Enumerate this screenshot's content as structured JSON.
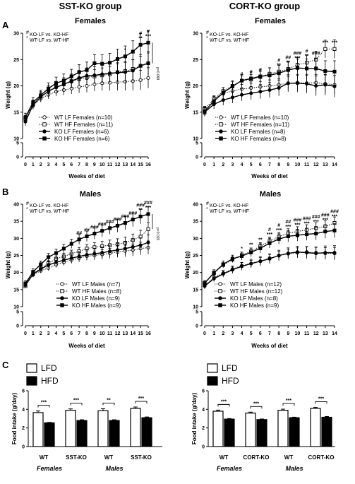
{
  "headers": {
    "left": "SST-KO group",
    "right": "CORT-KO group"
  },
  "panel_labels": [
    "A",
    "B",
    "C"
  ],
  "colors": {
    "ink": "#000000",
    "open": "#ffffff"
  },
  "chart_data": [
    {
      "id": "sst-females",
      "type": "line",
      "title": "Females",
      "xlabel": "Weeks of diet",
      "ylabel": "Weight (g)",
      "x": [
        0,
        1,
        2,
        3,
        4,
        5,
        6,
        7,
        8,
        9,
        10,
        11,
        12,
        13,
        14,
        15,
        16
      ],
      "yticks_top": [
        10,
        15,
        20,
        25,
        30
      ],
      "yticks_bottom": [
        0,
        5
      ],
      "ylim": [
        0,
        30
      ],
      "annotation": [
        "KO-LF vs. KO-HF",
        "WT-LF vs. WT-HF"
      ],
      "annotation_symbols": [
        "#",
        "*"
      ],
      "pvalue": "p=0.068",
      "series": [
        {
          "name": "WT  LF Females (n=10)",
          "marker": "circle-open",
          "line": "dotted",
          "values": [
            13.5,
            16.2,
            17.6,
            18.3,
            18.9,
            19.2,
            19.5,
            19.8,
            20.0,
            20.3,
            20.5,
            20.6,
            20.7,
            20.8,
            20.9,
            21.1,
            21.5
          ]
        },
        {
          "name": "WT  HF Females (n=11)",
          "marker": "square-open",
          "line": "dotted",
          "values": [
            13.9,
            16.5,
            18.0,
            19.0,
            19.8,
            20.3,
            20.9,
            21.3,
            21.6,
            21.8,
            22.0,
            22.2,
            22.6,
            22.8,
            23.2,
            23.8,
            24.3
          ]
        },
        {
          "name": "KO LF Females (n=6)",
          "marker": "circle-filled",
          "line": "solid",
          "values": [
            13.2,
            16.4,
            17.9,
            19.0,
            19.7,
            20.3,
            20.9,
            21.5,
            21.9,
            22.0,
            22.2,
            22.4,
            22.5,
            22.6,
            22.9,
            23.8,
            24.3
          ]
        },
        {
          "name": "KO HF Females (n=6)",
          "marker": "square-filled",
          "line": "solid",
          "values": [
            14.0,
            16.9,
            18.2,
            19.5,
            20.5,
            21.0,
            21.8,
            22.6,
            23.0,
            24.3,
            24.2,
            24.4,
            25.1,
            25.6,
            26.5,
            27.8,
            28.2
          ]
        }
      ],
      "sig": [
        {
          "x": 13,
          "labels": [
            "*"
          ]
        },
        {
          "x": 15,
          "labels": [
            "#",
            "**"
          ]
        },
        {
          "x": 16,
          "labels": [
            "#",
            "***"
          ]
        }
      ]
    },
    {
      "id": "cort-females",
      "type": "line",
      "title": "Females",
      "xlabel": "Weeks of diet",
      "ylabel": "Weight (g)",
      "x": [
        0,
        1,
        2,
        3,
        4,
        5,
        6,
        7,
        8,
        9,
        10,
        11,
        12,
        13,
        14
      ],
      "yticks_top": [
        10,
        15,
        20,
        25,
        30
      ],
      "yticks_bottom": [
        0,
        5
      ],
      "ylim": [
        0,
        30
      ],
      "annotation": [
        "KO-LF vs. KO-HF",
        "WT-LF vs. WT-HF"
      ],
      "annotation_symbols": [
        "#",
        "*"
      ],
      "series": [
        {
          "name": "WT  LF Females (n=10)",
          "marker": "circle-open",
          "line": "dotted",
          "values": [
            14.8,
            17.5,
            18.6,
            19.0,
            19.4,
            19.6,
            19.8,
            20.0,
            20.2,
            20.5,
            20.6,
            20.5,
            20.6,
            20.4,
            20.2
          ]
        },
        {
          "name": "WT  HF Females (n=11)",
          "marker": "square-open",
          "line": "dotted",
          "values": [
            15.6,
            17.5,
            19.0,
            20.0,
            21.0,
            21.2,
            21.7,
            22.3,
            22.7,
            23.2,
            24.0,
            24.4,
            25.0,
            27.0,
            27.0
          ]
        },
        {
          "name": "KO LF Females (n=8)",
          "marker": "circle-filled",
          "line": "solid",
          "values": [
            15.0,
            16.5,
            17.3,
            17.8,
            18.3,
            18.6,
            18.9,
            19.2,
            19.6,
            20.5,
            20.5,
            20.4,
            20.0,
            20.2,
            19.9
          ]
        },
        {
          "name": "KO HF Females (n=8)",
          "marker": "square-filled",
          "line": "solid",
          "values": [
            15.2,
            17.1,
            18.7,
            19.9,
            21.0,
            21.4,
            21.8,
            22.0,
            22.4,
            23.0,
            23.4,
            23.3,
            23.3,
            22.8,
            22.7
          ]
        }
      ],
      "sig": [
        {
          "x": 4,
          "labels": [
            "#"
          ]
        },
        {
          "x": 5,
          "labels": [
            "#"
          ]
        },
        {
          "x": 6,
          "labels": [
            "#"
          ]
        },
        {
          "x": 8,
          "labels": [
            "#",
            "**"
          ]
        },
        {
          "x": 9,
          "labels": [
            "##",
            "**"
          ]
        },
        {
          "x": 10,
          "labels": [
            "###",
            "***"
          ]
        },
        {
          "x": 11,
          "labels": [
            "#",
            "**"
          ]
        },
        {
          "x": 12,
          "labels": [
            "###"
          ]
        },
        {
          "x": 13,
          "labels": [
            "***"
          ]
        },
        {
          "x": 14,
          "labels": [
            "***"
          ]
        }
      ]
    },
    {
      "id": "sst-males",
      "type": "line",
      "title": "Males",
      "xlabel": "Weeks of diet",
      "ylabel": "Weight (g)",
      "x": [
        0,
        1,
        2,
        3,
        4,
        5,
        6,
        7,
        8,
        9,
        10,
        11,
        12,
        13,
        14,
        15,
        16
      ],
      "yticks_top": [
        10,
        15,
        20,
        25,
        30,
        35,
        40
      ],
      "yticks_bottom": [
        0,
        5
      ],
      "ylim": [
        0,
        40
      ],
      "annotation": [
        "KO-LF vs. KO-HF",
        "WT-LF vs. WT-HF"
      ],
      "annotation_symbols": [
        "#",
        "*"
      ],
      "pvalue": "p=0.015",
      "series": [
        {
          "name": "WT  LF Males (n=7)",
          "marker": "circle-open",
          "line": "dotted",
          "values": [
            16.5,
            19.3,
            20.5,
            21.3,
            22.3,
            23.0,
            23.7,
            24.2,
            24.8,
            25.0,
            25.3,
            25.6,
            26.0,
            26.3,
            26.6,
            27.0,
            27.3
          ]
        },
        {
          "name": "WT  HF Males (n=8)",
          "marker": "square-open",
          "line": "dotted",
          "values": [
            16.0,
            19.7,
            21.2,
            22.7,
            24.0,
            24.7,
            25.5,
            26.2,
            27.0,
            27.4,
            27.7,
            28.0,
            28.3,
            28.7,
            29.5,
            30.5,
            32.7
          ]
        },
        {
          "name": "KO LF Males (n=9)",
          "marker": "circle-filled",
          "line": "solid",
          "values": [
            16.3,
            19.5,
            21.0,
            22.2,
            23.0,
            23.6,
            24.2,
            24.7,
            25.2,
            25.5,
            25.8,
            26.2,
            26.6,
            27.0,
            27.5,
            28.0,
            28.8
          ]
        },
        {
          "name": "KO HF Males (n=9)",
          "marker": "square-filled",
          "line": "solid",
          "values": [
            16.8,
            20.2,
            22.4,
            24.5,
            25.7,
            27.0,
            28.4,
            29.7,
            30.6,
            31.4,
            32.2,
            33.0,
            33.7,
            34.5,
            35.5,
            36.4,
            37.1
          ]
        }
      ],
      "sig": [
        {
          "x": 7,
          "labels": [
            "##"
          ]
        },
        {
          "x": 8,
          "labels": [
            "##"
          ]
        },
        {
          "x": 9,
          "labels": [
            "###"
          ]
        },
        {
          "x": 10,
          "labels": [
            "###"
          ]
        },
        {
          "x": 11,
          "labels": [
            "###"
          ]
        },
        {
          "x": 12,
          "labels": [
            "###"
          ]
        },
        {
          "x": 13,
          "labels": [
            "###"
          ]
        },
        {
          "x": 14,
          "labels": [
            "###"
          ]
        },
        {
          "x": 15,
          "labels": [
            "###",
            "**"
          ]
        },
        {
          "x": 16,
          "labels": [
            "###",
            "***"
          ]
        }
      ]
    },
    {
      "id": "cort-males",
      "type": "line",
      "title": "Males",
      "xlabel": "Weeks of diet",
      "ylabel": "Weight (g)",
      "x": [
        0,
        1,
        2,
        3,
        4,
        5,
        6,
        7,
        8,
        9,
        10,
        11,
        12,
        13,
        14
      ],
      "yticks_top": [
        10,
        15,
        20,
        25,
        30,
        35,
        40
      ],
      "yticks_bottom": [
        0,
        5
      ],
      "ylim": [
        0,
        40
      ],
      "annotation": [
        "KO-LF vs. KO-HF",
        "WT-LF vs. WT-HF"
      ],
      "annotation_symbols": [
        "#",
        "*"
      ],
      "series": [
        {
          "name": "WT  LF Males (n=12)",
          "marker": "circle-open",
          "line": "dotted",
          "values": [
            16.3,
            18.5,
            19.8,
            21.0,
            22.0,
            22.6,
            23.3,
            24.2,
            24.9,
            25.5,
            25.8,
            26.0,
            25.8,
            25.6,
            25.6
          ]
        },
        {
          "name": "WT  HF Males (n=12)",
          "marker": "square-open",
          "line": "dotted",
          "values": [
            16.8,
            19.8,
            22.2,
            23.8,
            25.1,
            26.2,
            27.7,
            29.2,
            30.5,
            31.5,
            32.0,
            32.5,
            33.0,
            33.5,
            34.5
          ]
        },
        {
          "name": "KO LF Males (n=8)",
          "marker": "circle-filled",
          "line": "solid",
          "values": [
            16.0,
            18.2,
            19.6,
            20.8,
            21.8,
            22.6,
            23.3,
            24.0,
            25.0,
            25.6,
            26.0,
            25.8,
            25.6,
            25.8,
            25.8
          ]
        },
        {
          "name": "KO HF Males (n=9)",
          "marker": "square-filled",
          "line": "solid",
          "values": [
            16.9,
            19.9,
            22.4,
            24.0,
            24.8,
            25.9,
            27.1,
            28.6,
            29.8,
            30.6,
            30.9,
            31.2,
            31.4,
            32.0,
            32.3
          ]
        }
      ],
      "sig": [
        {
          "x": 4,
          "labels": [
            "*"
          ]
        },
        {
          "x": 5,
          "labels": [
            "**"
          ]
        },
        {
          "x": 6,
          "labels": [
            "**"
          ]
        },
        {
          "x": 7,
          "labels": [
            "#",
            "***"
          ]
        },
        {
          "x": 8,
          "labels": [
            "#",
            "***"
          ]
        },
        {
          "x": 9,
          "labels": [
            "##",
            "***"
          ]
        },
        {
          "x": 10,
          "labels": [
            "###",
            "***"
          ]
        },
        {
          "x": 11,
          "labels": [
            "###",
            "***"
          ]
        },
        {
          "x": 12,
          "labels": [
            "###",
            "***"
          ]
        },
        {
          "x": 13,
          "labels": [
            "###",
            "***"
          ]
        },
        {
          "x": 14,
          "labels": [
            "###",
            "***"
          ]
        }
      ]
    },
    {
      "id": "sst-food",
      "type": "bar",
      "ylabel": "Food intake (g/day)",
      "yticks": [
        0,
        2,
        4,
        6
      ],
      "ylim": [
        0,
        6
      ],
      "legend": [
        "LFD",
        "HFD"
      ],
      "groups": [
        {
          "label": "WT",
          "lfd": 3.65,
          "lfd_err": 0.18,
          "hfd": 2.55,
          "hfd_err": 0.05,
          "sig": "***"
        },
        {
          "label": "SST-KO",
          "lfd": 3.9,
          "lfd_err": 0.15,
          "hfd": 2.8,
          "hfd_err": 0.08,
          "sig": "***"
        },
        {
          "label": "WT",
          "lfd": 3.85,
          "lfd_err": 0.22,
          "hfd": 2.8,
          "hfd_err": 0.08,
          "sig": "**"
        },
        {
          "label": "SST-KO",
          "lfd": 4.1,
          "lfd_err": 0.15,
          "hfd": 3.1,
          "hfd_err": 0.08,
          "sig": "***"
        }
      ],
      "sex_labels": [
        "Females",
        "Males"
      ]
    },
    {
      "id": "cort-food",
      "type": "bar",
      "ylabel": "Food intake (g/day)",
      "yticks": [
        0,
        2,
        4,
        6
      ],
      "ylim": [
        0,
        6
      ],
      "legend": [
        "LFD",
        "HFD"
      ],
      "groups": [
        {
          "label": "WT",
          "lfd": 3.8,
          "lfd_err": 0.12,
          "hfd": 2.95,
          "hfd_err": 0.06,
          "sig": "***"
        },
        {
          "label": "CORT-KO",
          "lfd": 3.6,
          "lfd_err": 0.1,
          "hfd": 2.9,
          "hfd_err": 0.06,
          "sig": "***"
        },
        {
          "label": "WT",
          "lfd": 3.9,
          "lfd_err": 0.12,
          "hfd": 3.1,
          "hfd_err": 0.06,
          "sig": "***"
        },
        {
          "label": "CORT-KO",
          "lfd": 4.1,
          "lfd_err": 0.12,
          "hfd": 3.15,
          "hfd_err": 0.08,
          "sig": "***"
        }
      ],
      "sex_labels": [
        "Females",
        "Males"
      ]
    }
  ]
}
